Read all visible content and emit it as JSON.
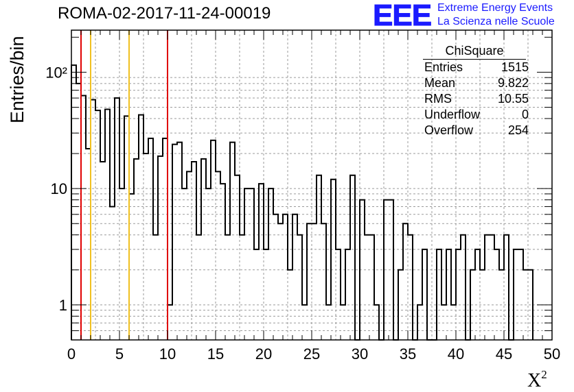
{
  "title": "ROMA-02-2017-11-24-00019",
  "logo": {
    "mark": "EEE",
    "line1": "Extreme Energy Events",
    "line2": "La Scienza nelle Scuole",
    "color": "#1a1aff"
  },
  "stats_box": {
    "title": "ChiSquare",
    "rows": [
      {
        "label": "Entries",
        "value": "1515"
      },
      {
        "label": "Mean",
        "value": "9.822"
      },
      {
        "label": "RMS",
        "value": "10.55"
      },
      {
        "label": "Underflow",
        "value": "0"
      },
      {
        "label": "Overflow",
        "value": "254"
      }
    ]
  },
  "chart_data": {
    "type": "histogram",
    "title": "ROMA-02-2017-11-24-00019",
    "xlabel": "X",
    "xlabel_superscript": "2",
    "ylabel": "Entries/bin",
    "xlim": [
      0,
      50
    ],
    "ylim": [
      0.5,
      230
    ],
    "yscale": "log",
    "grid": true,
    "bin_width": 0.5,
    "x_ticks": [
      "0",
      "5",
      "10",
      "15",
      "20",
      "25",
      "30",
      "35",
      "40",
      "45",
      "50"
    ],
    "y_ticks": [
      "1",
      "10",
      "10²"
    ],
    "bin_counts": [
      115,
      80,
      63,
      22,
      58,
      47,
      17,
      48,
      7,
      60,
      10,
      42,
      9,
      18,
      43,
      20,
      27,
      4,
      19,
      27,
      1,
      24,
      25,
      10,
      14,
      17,
      4,
      18,
      10,
      26,
      14,
      11,
      4,
      25,
      13,
      4,
      10,
      10,
      3,
      11,
      3,
      10,
      6,
      5,
      6,
      2,
      6,
      4,
      1,
      5,
      5,
      13,
      5,
      1,
      12,
      3,
      1,
      3,
      13,
      0,
      8,
      4,
      4,
      1,
      0,
      8,
      8,
      0,
      2,
      5,
      4,
      0,
      1,
      3,
      0,
      0,
      3,
      1,
      3,
      1,
      3,
      4,
      0,
      2,
      3,
      2,
      4,
      4,
      3,
      2,
      4,
      0,
      3,
      3,
      2,
      2
    ],
    "vertical_lines": [
      {
        "x": 1,
        "color": "#e00000",
        "style": "solid"
      },
      {
        "x": 2,
        "color": "#f0c020",
        "style": "solid"
      },
      {
        "x": 6,
        "color": "#f0c020",
        "style": "solid"
      },
      {
        "x": 10,
        "color": "#000000",
        "style": "dashed"
      },
      {
        "x": 10,
        "color": "#e00000",
        "style": "solid"
      }
    ]
  }
}
